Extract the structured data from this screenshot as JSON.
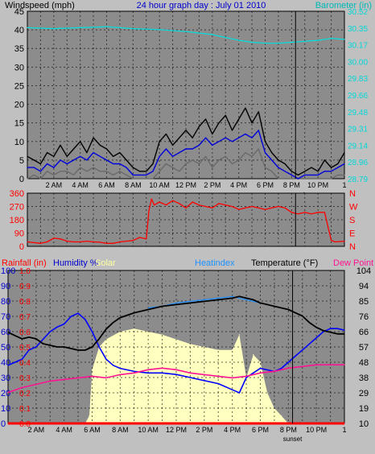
{
  "title": "24 hour graph day : July 01 2010",
  "colors": {
    "panel_bg": "#c0c0c0",
    "plot_bg": "#8c8c8c",
    "wind_avg": "#0000dd",
    "wind_gust": "#000000",
    "wind_low": "#6a6a6a",
    "barometer": "#00e0e0",
    "direction": "#ff0000",
    "humidity": "#0000ff",
    "temperature": "#000000",
    "heatindex": "#1e90ff",
    "dewpoint": "#ff1493",
    "solar": "#ffffc0",
    "rainfall": "#ff0000",
    "sunset": "#000000"
  },
  "sunset_label": "sunset",
  "chart_data": [
    {
      "type": "line",
      "panel": "wind",
      "ylabel": "Windspeed (mph)",
      "ylabel_right": "Barometer (in)",
      "ylim": [
        0,
        45
      ],
      "y_ticks": [
        0,
        5,
        10,
        15,
        20,
        25,
        30,
        35,
        40,
        45
      ],
      "ylim_right": [
        28.79,
        30.52
      ],
      "y_ticks_right": [
        "28.79",
        "28.96",
        "29.14",
        "29.31",
        "29.48",
        "29.66",
        "29.83",
        "30.00",
        "30.17",
        "30.35",
        "30.52"
      ],
      "x_ticks": [
        "2 AM",
        "4 AM",
        "6 AM",
        "8 AM",
        "10 AM",
        "12 PM",
        "2 PM",
        "4 PM",
        "6 PM",
        "8 PM",
        "10 PM"
      ],
      "x_end_label": "1",
      "xlim": [
        0,
        24
      ],
      "grid": true,
      "series": [
        {
          "key": "gust",
          "x": [
            0,
            0.5,
            1,
            1.5,
            2,
            2.5,
            3,
            3.5,
            4,
            4.5,
            5,
            5.5,
            6,
            6.5,
            7,
            7.5,
            8,
            8.5,
            9,
            9.5,
            10,
            10.5,
            11,
            11.5,
            12,
            12.5,
            13,
            13.5,
            14,
            14.5,
            15,
            15.5,
            16,
            16.5,
            17,
            17.5,
            18,
            18.5,
            19,
            19.5,
            20,
            20.5,
            21,
            21.5,
            22,
            22.5,
            23,
            23.5,
            24
          ],
          "values": [
            6,
            5,
            4,
            7,
            6,
            9,
            6,
            8,
            10,
            7,
            11,
            9,
            8,
            6,
            7,
            5,
            3,
            2,
            2,
            4,
            10,
            12,
            9,
            11,
            13,
            11,
            14,
            16,
            12,
            15,
            17,
            13,
            16,
            19,
            15,
            18,
            10,
            7,
            5,
            4,
            2,
            1,
            2,
            3,
            2,
            5,
            3,
            4,
            7
          ]
        },
        {
          "key": "avg",
          "x": [
            0,
            0.5,
            1,
            1.5,
            2,
            2.5,
            3,
            3.5,
            4,
            4.5,
            5,
            5.5,
            6,
            6.5,
            7,
            7.5,
            8,
            8.5,
            9,
            9.5,
            10,
            10.5,
            11,
            11.5,
            12,
            12.5,
            13,
            13.5,
            14,
            14.5,
            15,
            15.5,
            16,
            16.5,
            17,
            17.5,
            18,
            18.5,
            19,
            19.5,
            20,
            20.5,
            21,
            21.5,
            22,
            22.5,
            23,
            23.5,
            24
          ],
          "values": [
            3,
            3,
            2,
            4,
            3,
            5,
            4,
            5,
            6,
            5,
            7,
            6,
            5,
            4,
            4,
            3,
            1,
            1,
            1,
            2,
            6,
            8,
            6,
            7,
            8,
            8,
            9,
            11,
            9,
            10,
            11,
            10,
            11,
            12,
            11,
            13,
            7,
            5,
            3,
            2,
            1,
            0,
            1,
            1,
            1,
            2,
            2,
            3,
            4
          ]
        },
        {
          "key": "low",
          "x": [
            0,
            0.5,
            1,
            1.5,
            2,
            2.5,
            3,
            3.5,
            4,
            4.5,
            5,
            5.5,
            6,
            6.5,
            7,
            7.5,
            8,
            8.5,
            9,
            9.5,
            10,
            10.5,
            11,
            11.5,
            12,
            12.5,
            13,
            13.5,
            14,
            14.5,
            15,
            15.5,
            16,
            16.5,
            17,
            17.5,
            18,
            18.5,
            19,
            19.5,
            20,
            20.5,
            21,
            21.5,
            22,
            22.5,
            23,
            23.5,
            24
          ],
          "values": [
            0,
            1,
            0,
            2,
            1,
            2,
            2,
            1,
            3,
            2,
            3,
            2,
            2,
            1,
            2,
            1,
            0,
            0,
            0,
            0,
            2,
            4,
            3,
            2,
            4,
            5,
            4,
            6,
            3,
            5,
            6,
            4,
            5,
            7,
            6,
            8,
            3,
            2,
            0,
            0,
            0,
            0,
            0,
            0,
            0,
            0,
            0,
            1,
            1
          ]
        },
        {
          "key": "barometer",
          "x": [
            0,
            2,
            4,
            6,
            7,
            8,
            10,
            12,
            14,
            15,
            16,
            17,
            18,
            19,
            20,
            21,
            22,
            23,
            24
          ],
          "values": [
            30.35,
            30.34,
            30.35,
            30.36,
            30.35,
            30.34,
            30.33,
            30.31,
            30.28,
            30.25,
            30.22,
            30.2,
            30.19,
            30.19,
            30.2,
            30.21,
            30.22,
            30.24,
            30.23
          ]
        }
      ]
    },
    {
      "type": "line",
      "panel": "direction",
      "ylim": [
        0,
        360
      ],
      "y_ticks": [
        0,
        90,
        180,
        270,
        360
      ],
      "y_ticks_right": [
        "N",
        "E",
        "S",
        "W",
        "N"
      ],
      "xlim": [
        0,
        24
      ],
      "grid": true,
      "series": [
        {
          "key": "direction",
          "x": [
            0,
            0.5,
            1,
            1.5,
            2,
            2.5,
            3,
            3.5,
            4,
            4.5,
            5,
            5.5,
            6,
            6.5,
            7,
            7.5,
            8,
            8.5,
            9,
            9.2,
            9.4,
            9.6,
            10,
            10.5,
            11,
            11.5,
            12,
            12.5,
            13,
            13.5,
            14,
            14.5,
            15,
            15.5,
            16,
            16.5,
            17,
            17.5,
            18,
            18.5,
            19,
            19.5,
            20,
            20.5,
            21,
            21.5,
            22,
            22.5,
            23,
            23.3,
            24
          ],
          "values": [
            30,
            25,
            20,
            30,
            55,
            50,
            35,
            30,
            30,
            35,
            30,
            28,
            20,
            20,
            30,
            35,
            40,
            60,
            50,
            240,
            320,
            280,
            300,
            280,
            310,
            290,
            260,
            300,
            280,
            270,
            260,
            290,
            280,
            270,
            250,
            260,
            270,
            260,
            250,
            260,
            270,
            260,
            230,
            220,
            230,
            220,
            230,
            230,
            40,
            30,
            35
          ]
        }
      ]
    },
    {
      "type": "line",
      "panel": "temperature",
      "ylabel": "Rainfall (in)",
      "ylabel_humidity": "Humidity %",
      "ylabel_solar": "Solar",
      "ylabel_heatindex": "Heatindex",
      "ylabel_right": "Temperature (°F)",
      "ylabel_dewpoint": "Dew Point",
      "ylim": [
        0,
        100
      ],
      "y_ticks_humidity": [
        0,
        10,
        20,
        30,
        40,
        50,
        60,
        70,
        80,
        90,
        100
      ],
      "y_ticks_rain": [
        "0.0",
        "0.1",
        "0.2",
        "0.3",
        "0.4",
        "0.5",
        "0.6",
        "0.7",
        "0.8",
        "0.9",
        "1.0"
      ],
      "ylim_right": [
        10,
        104
      ],
      "y_ticks_right": [
        10,
        19,
        29,
        38,
        48,
        57,
        66,
        76,
        85,
        94,
        104
      ],
      "x_ticks": [
        "2 AM",
        "4 AM",
        "6 AM",
        "8 AM",
        "10 AM",
        "12 PM",
        "2 PM",
        "4 PM",
        "6 PM",
        "8 PM",
        "10 PM"
      ],
      "x_end_label": "1",
      "xlim": [
        0,
        24
      ],
      "grid": true,
      "series": [
        {
          "key": "temperature",
          "x": [
            0,
            0.5,
            1,
            1.5,
            2,
            2.5,
            3,
            3.5,
            4,
            4.5,
            5,
            5.5,
            6,
            6.5,
            7,
            7.5,
            8,
            9,
            10,
            11,
            12,
            13,
            14,
            15,
            16,
            16.5,
            17,
            17.5,
            18,
            18.5,
            19,
            19.5,
            20,
            20.5,
            21,
            21.5,
            22,
            22.5,
            23,
            23.5,
            24
          ],
          "values": [
            66,
            64,
            62,
            63,
            62,
            59,
            58,
            57,
            57,
            56,
            55,
            55,
            57,
            62,
            68,
            72,
            75,
            78,
            80,
            82,
            83,
            84,
            85,
            86,
            87,
            88,
            87,
            86,
            84,
            83,
            82,
            81,
            80,
            78,
            76,
            72,
            69,
            67,
            66,
            65,
            65
          ]
        },
        {
          "key": "heatindex",
          "x": [
            10,
            11,
            12,
            13,
            14,
            15,
            16,
            17,
            18
          ],
          "values": [
            81,
            82,
            84,
            85,
            86,
            87,
            88,
            86,
            84
          ]
        },
        {
          "key": "humidity",
          "x": [
            0,
            0.5,
            1,
            1.5,
            2,
            2.5,
            3,
            3.5,
            4,
            4.5,
            5,
            5.5,
            6,
            6.5,
            7,
            7.5,
            8,
            9,
            10,
            11,
            12,
            13,
            14,
            15,
            16,
            16.5,
            17,
            17.5,
            18,
            18.5,
            19,
            19.5,
            20,
            20.5,
            21,
            21.5,
            22,
            22.5,
            23,
            23.5,
            24
          ],
          "values": [
            38,
            40,
            42,
            48,
            50,
            55,
            60,
            63,
            65,
            70,
            72,
            68,
            60,
            50,
            42,
            38,
            36,
            34,
            33,
            33,
            32,
            30,
            28,
            26,
            22,
            20,
            30,
            33,
            36,
            35,
            34,
            36,
            40,
            44,
            48,
            52,
            56,
            60,
            62,
            62,
            61
          ]
        },
        {
          "key": "dewpoint",
          "x": [
            0,
            1,
            2,
            3,
            4,
            5,
            6,
            7,
            8,
            9,
            10,
            11,
            12,
            13,
            14,
            15,
            16,
            17,
            18,
            19,
            20,
            21,
            22,
            23,
            24
          ],
          "values": [
            29,
            32,
            34,
            36,
            37,
            38,
            39,
            38,
            40,
            41,
            43,
            44,
            43,
            41,
            40,
            39,
            38,
            39,
            41,
            42,
            44,
            45,
            46,
            46,
            46
          ]
        },
        {
          "key": "solar",
          "x": [
            0,
            5.5,
            5.8,
            6,
            6.5,
            7,
            8,
            9,
            10,
            11,
            12,
            13,
            14,
            15,
            16,
            16.5,
            17,
            17.5,
            18,
            18.5,
            19,
            19.5,
            20,
            24
          ],
          "values": [
            0,
            0,
            5,
            35,
            50,
            55,
            60,
            62,
            60,
            58,
            55,
            52,
            50,
            48,
            48,
            58,
            30,
            45,
            40,
            20,
            10,
            5,
            0,
            0
          ]
        },
        {
          "key": "rainfall",
          "x": [
            0,
            24
          ],
          "values": [
            0,
            0
          ]
        }
      ]
    }
  ]
}
